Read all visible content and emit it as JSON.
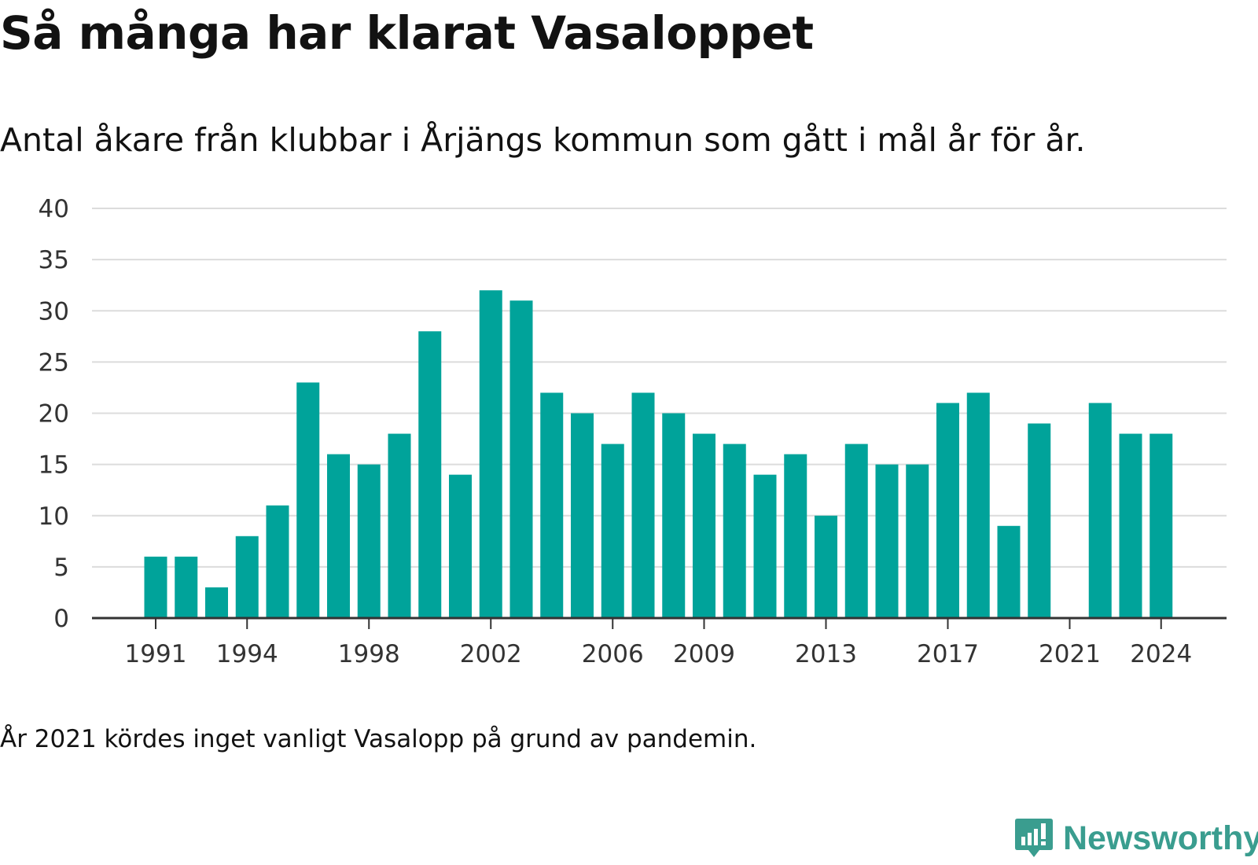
{
  "header": {
    "title": "Så många har klarat Vasaloppet",
    "subtitle": "Antal åkare från klubbar i Årjängs kommun som gått i mål år för år."
  },
  "footer": {
    "note": "År 2021 kördes inget vanligt Vasalopp på grund av pandemin.",
    "brand": "Newsworthy"
  },
  "colors": {
    "bar": "#00a39a",
    "grid": "#dcdcdc",
    "axis": "#333333",
    "brand": "#3a9d8f"
  },
  "chart_data": {
    "type": "bar",
    "title": "Så många har klarat Vasaloppet",
    "subtitle": "Antal åkare från klubbar i Årjängs kommun som gått i mål år för år.",
    "xlabel": "",
    "ylabel": "",
    "ylim": [
      0,
      40
    ],
    "yticks": [
      0,
      5,
      10,
      15,
      20,
      25,
      30,
      35,
      40
    ],
    "grid": true,
    "x_tick_labels": [
      "1991",
      "1994",
      "1998",
      "2002",
      "2006",
      "2009",
      "2013",
      "2017",
      "2021",
      "2024"
    ],
    "categories": [
      1990,
      1991,
      1992,
      1993,
      1994,
      1995,
      1996,
      1997,
      1998,
      1999,
      2000,
      2001,
      2002,
      2003,
      2004,
      2005,
      2006,
      2007,
      2008,
      2009,
      2010,
      2011,
      2012,
      2013,
      2014,
      2015,
      2016,
      2017,
      2018,
      2019,
      2020,
      2021,
      2022,
      2023,
      2024
    ],
    "values": [
      0,
      6,
      6,
      3,
      8,
      11,
      23,
      16,
      15,
      18,
      28,
      14,
      32,
      31,
      22,
      20,
      17,
      22,
      20,
      18,
      17,
      14,
      16,
      10,
      17,
      15,
      15,
      21,
      22,
      9,
      19,
      0,
      21,
      18,
      18
    ]
  }
}
